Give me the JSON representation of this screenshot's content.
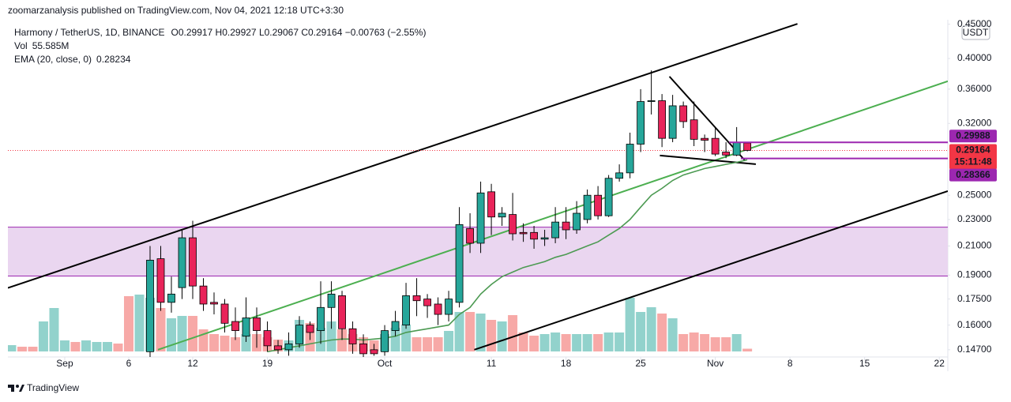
{
  "header": {
    "publisher": "zoomarzanalysis published on TradingView.com, Nov 04, 2021 12:18 UTC+3:30"
  },
  "footer": {
    "brand": "TradingView"
  },
  "chart_data": {
    "type": "candlestick",
    "title": "Harmony / TetherUS, 1D, BINANCE",
    "ohlc_text": "O0.29917  H0.29927  L0.29067  C0.29164  −0.00763 (−2.55%)",
    "y_unit": "USDT",
    "log_scale": true,
    "grid": false,
    "up_color": "#26a69a",
    "down_color": "#e9245a",
    "xlim": [
      -5.33,
      82.8
    ],
    "xticks": [
      {
        "value": 0,
        "label": "Sep"
      },
      6,
      12,
      19,
      {
        "value": 30,
        "label": "Oct"
      },
      {
        "value": 40,
        "label": "11"
      },
      {
        "value": 47,
        "label": "18"
      },
      {
        "value": 54,
        "label": "25"
      },
      {
        "value": 61,
        "label": "Nov"
      },
      {
        "value": 68,
        "label": "8"
      },
      {
        "value": 75,
        "label": "15"
      },
      {
        "value": 82,
        "label": "22"
      }
    ],
    "ylim": [
      0.143,
      0.457
    ],
    "yticks": [
      {
        "value": 0.45,
        "label": "0.45000"
      },
      {
        "value": 0.4,
        "label": "0.40000"
      },
      {
        "value": 0.36,
        "label": "0.36000"
      },
      {
        "value": 0.32,
        "label": "0.32000"
      },
      {
        "value": 0.25,
        "label": "0.25000"
      },
      {
        "value": 0.23,
        "label": "0.23000"
      },
      {
        "value": 0.21,
        "label": "0.21000"
      },
      {
        "value": 0.19,
        "label": "0.19000"
      },
      {
        "value": 0.175,
        "label": "0.17500"
      },
      {
        "value": 0.16,
        "label": "0.16000"
      },
      {
        "value": 0.147,
        "label": "0.14700"
      }
    ],
    "x": [
      8,
      9,
      10,
      11,
      12,
      13,
      14,
      15,
      16,
      17,
      18,
      19,
      20,
      21,
      22,
      23,
      24,
      25,
      26,
      27,
      28,
      29,
      30,
      31,
      32,
      33,
      34,
      35,
      36,
      37,
      38,
      39,
      40,
      41,
      42,
      43,
      44,
      45,
      46,
      47,
      48,
      49,
      50,
      51,
      52,
      53,
      54,
      55,
      56,
      57,
      58,
      59,
      60,
      61,
      62,
      63,
      64
    ],
    "open": [
      0.146,
      0.201,
      0.173,
      0.182,
      0.216,
      0.183,
      0.173,
      0.172,
      0.162,
      0.154,
      0.164,
      0.157,
      0.149,
      0.147,
      0.15,
      0.16,
      0.157,
      0.17,
      0.177,
      0.158,
      0.15,
      0.147,
      0.146,
      0.157,
      0.16,
      0.177,
      0.175,
      0.172,
      0.166,
      0.173,
      0.223,
      0.212,
      0.253,
      0.232,
      0.234,
      0.22,
      0.22,
      0.215,
      0.216,
      0.228,
      0.222,
      0.23,
      0.25,
      0.233,
      0.265,
      0.27,
      0.298,
      0.345,
      0.346,
      0.304,
      0.34,
      0.324,
      0.304,
      0.304,
      0.29,
      0.287,
      0.29917
    ],
    "high": [
      0.21,
      0.21,
      0.189,
      0.222,
      0.229,
      0.188,
      0.179,
      0.175,
      0.17,
      0.176,
      0.17,
      0.162,
      0.152,
      0.156,
      0.165,
      0.162,
      0.186,
      0.186,
      0.18,
      0.162,
      0.155,
      0.15,
      0.16,
      0.168,
      0.185,
      0.188,
      0.178,
      0.176,
      0.18,
      0.24,
      0.235,
      0.262,
      0.26,
      0.24,
      0.252,
      0.227,
      0.225,
      0.222,
      0.24,
      0.24,
      0.245,
      0.255,
      0.258,
      0.268,
      0.278,
      0.31,
      0.36,
      0.384,
      0.354,
      0.353,
      0.345,
      0.345,
      0.308,
      0.316,
      0.3,
      0.316,
      0.29927
    ],
    "low": [
      0.143,
      0.168,
      0.167,
      0.175,
      0.175,
      0.168,
      0.166,
      0.156,
      0.152,
      0.151,
      0.148,
      0.146,
      0.145,
      0.144,
      0.148,
      0.152,
      0.15,
      0.158,
      0.152,
      0.145,
      0.143,
      0.144,
      0.144,
      0.154,
      0.158,
      0.165,
      0.164,
      0.16,
      0.162,
      0.17,
      0.205,
      0.205,
      0.218,
      0.225,
      0.214,
      0.213,
      0.208,
      0.21,
      0.212,
      0.215,
      0.219,
      0.227,
      0.23,
      0.232,
      0.262,
      0.265,
      0.29,
      0.33,
      0.295,
      0.3,
      0.315,
      0.296,
      0.29,
      0.286,
      0.284,
      0.286,
      0.29067
    ],
    "close": [
      0.2,
      0.173,
      0.178,
      0.216,
      0.183,
      0.172,
      0.172,
      0.161,
      0.157,
      0.164,
      0.157,
      0.149,
      0.147,
      0.15,
      0.16,
      0.156,
      0.17,
      0.178,
      0.158,
      0.15,
      0.145,
      0.145,
      0.157,
      0.162,
      0.177,
      0.174,
      0.171,
      0.166,
      0.175,
      0.226,
      0.212,
      0.252,
      0.232,
      0.235,
      0.219,
      0.219,
      0.215,
      0.216,
      0.228,
      0.222,
      0.235,
      0.25,
      0.233,
      0.265,
      0.27,
      0.298,
      0.345,
      0.346,
      0.304,
      0.34,
      0.322,
      0.303,
      0.302,
      0.288,
      0.287,
      0.3,
      0.29164
    ],
    "ema": {
      "name": "EMA (20, close, 0)",
      "color": "#4c9a52",
      "last_value_label": "0.28234",
      "values": [
        null,
        null,
        null,
        null,
        null,
        null,
        null,
        null,
        null,
        null,
        null,
        0.146,
        0.147,
        0.148,
        0.149,
        0.15,
        0.151,
        0.152,
        0.1525,
        0.1525,
        0.152,
        0.1525,
        0.153,
        0.154,
        0.156,
        0.157,
        0.158,
        0.159,
        0.16,
        0.166,
        0.17,
        0.178,
        0.184,
        0.189,
        0.192,
        0.195,
        0.197,
        0.199,
        0.202,
        0.204,
        0.207,
        0.21,
        0.213,
        0.218,
        0.223,
        0.23,
        0.24,
        0.25,
        0.256,
        0.263,
        0.268,
        0.271,
        0.274,
        0.276,
        0.278,
        0.28,
        0.28234
      ]
    },
    "volume": {
      "name": "Vol",
      "last_value_label": "55.585M",
      "label_color": "#e9245a",
      "x": [
        -5,
        -4,
        -3,
        -2,
        -1,
        0,
        1,
        2,
        3,
        4,
        5,
        6,
        7,
        8,
        9,
        10,
        11,
        12,
        13,
        14,
        15,
        16,
        17,
        18,
        19,
        20,
        21,
        22,
        23,
        24,
        25,
        26,
        27,
        28,
        29,
        30,
        31,
        32,
        33,
        34,
        35,
        36,
        37,
        38,
        39,
        40,
        41,
        42,
        43,
        44,
        45,
        46,
        47,
        48,
        49,
        50,
        51,
        52,
        53,
        54,
        55,
        56,
        57,
        58,
        59,
        60,
        61,
        62,
        63,
        64
      ],
      "values": [
        128,
        96,
        96,
        608,
        880,
        224,
        192,
        224,
        192,
        192,
        160,
        1120,
        1152,
        1088,
        880,
        672,
        720,
        720,
        448,
        352,
        320,
        288,
        352,
        352,
        288,
        240,
        224,
        640,
        576,
        480,
        608,
        448,
        352,
        288,
        224,
        352,
        480,
        544,
        288,
        288,
        288,
        416,
        800,
        800,
        768,
        640,
        608,
        736,
        384,
        320,
        352,
        384,
        352,
        352,
        352,
        352,
        384,
        384,
        1088,
        800,
        896,
        768,
        672,
        352,
        384,
        352,
        288,
        288,
        352,
        55.585
      ],
      "colors": [
        "#92d2cc",
        "#f7a9a7",
        "#f7a9a7",
        "#92d2cc",
        "#92d2cc",
        "#92d2cc",
        "#f7a9a7",
        "#92d2cc",
        "#92d2cc",
        "#92d2cc",
        "#f7a9a7",
        "#f7a9a7",
        "#92d2cc",
        "#92d2cc",
        "#f7a9a7",
        "#92d2cc",
        "#92d2cc",
        "#f7a9a7",
        "#f7a9a7",
        "#f7a9a7",
        "#f7a9a7",
        "#f7a9a7",
        "#92d2cc",
        "#f7a9a7",
        "#f7a9a7",
        "#f7a9a7",
        "#92d2cc",
        "#92d2cc",
        "#f7a9a7",
        "#92d2cc",
        "#92d2cc",
        "#f7a9a7",
        "#f7a9a7",
        "#f7a9a7",
        "#f7a9a7",
        "#92d2cc",
        "#92d2cc",
        "#92d2cc",
        "#f7a9a7",
        "#f7a9a7",
        "#f7a9a7",
        "#92d2cc",
        "#92d2cc",
        "#f7a9a7",
        "#92d2cc",
        "#f7a9a7",
        "#92d2cc",
        "#f7a9a7",
        "#f7a9a7",
        "#f7a9a7",
        "#92d2cc",
        "#92d2cc",
        "#f7a9a7",
        "#92d2cc",
        "#92d2cc",
        "#f7a9a7",
        "#92d2cc",
        "#92d2cc",
        "#92d2cc",
        "#92d2cc",
        "#92d2cc",
        "#f7a9a7",
        "#92d2cc",
        "#f7a9a7",
        "#f7a9a7",
        "#f7a9a7",
        "#f7a9a7",
        "#f7a9a7",
        "#92d2cc",
        "#f7a9a7"
      ]
    },
    "zone": {
      "low": 0.1894,
      "high": 0.224,
      "fill": "#ead6f0",
      "color": "#9c27b0"
    },
    "drawings": [
      {
        "color": "#000000",
        "x": [
          -5.33,
          68.7
        ],
        "y": [
          0.1818,
          0.4506
        ]
      },
      {
        "color": "#000000",
        "x": [
          38.4,
          82.8
        ],
        "y": [
          0.147,
          0.2536
        ]
      },
      {
        "color": "#4caf50",
        "x": [
          8.74,
          82.8
        ],
        "y": [
          0.147,
          0.37
        ]
      },
      {
        "color": "#000000",
        "x": [
          56.7,
          63.8
        ],
        "y": [
          0.376,
          0.2815
        ]
      },
      {
        "color": "#000000",
        "x": [
          55.8,
          64.8
        ],
        "y": [
          0.2866,
          0.2782
        ]
      }
    ],
    "price_labels": [
      {
        "value": 0.29988,
        "label": "0.29988",
        "color": "#9c27b0",
        "line_from_x": 62.3
      },
      {
        "value": 0.29164,
        "label": "0.29164",
        "color": "#f23645",
        "countdown": "15:11:48"
      },
      {
        "value": 0.28366,
        "label": "0.28366",
        "color": "#9c27b0",
        "line_from_x": 63.4
      }
    ]
  }
}
